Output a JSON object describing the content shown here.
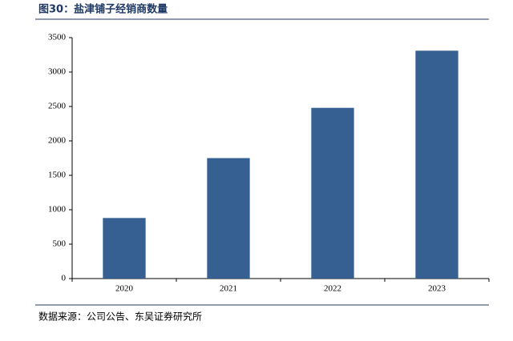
{
  "chart_data": {
    "type": "bar",
    "title": "图30：盐津铺子经销商数量",
    "categories": [
      "2020",
      "2021",
      "2022",
      "2023"
    ],
    "values": [
      880,
      1750,
      2480,
      3310
    ],
    "color": "#366092",
    "ylim": [
      0,
      3500
    ],
    "yticks": [
      0,
      500,
      1000,
      1500,
      2000,
      2500,
      3000,
      3500
    ],
    "grid": false,
    "source": "数据来源：公司公告、东吴证券研究所"
  }
}
